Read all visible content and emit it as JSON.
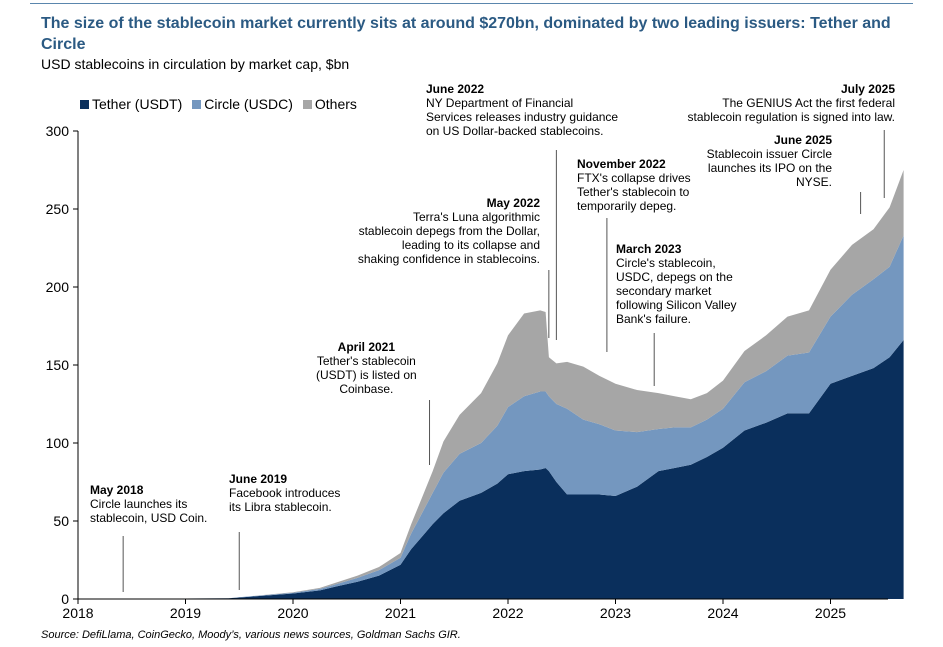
{
  "title": "The size of the stablecoin market currently sits at around $270bn, dominated by two leading issuers: Tether and Circle",
  "subtitle": "USD stablecoins in circulation by market cap, $bn",
  "source": "Source: DefiLlama, CoinGecko, Moody’s, various news sources, Goldman Sachs GIR.",
  "colors": {
    "tether": "#0a2f5c",
    "circle": "#7497bf",
    "others": "#a6a6a6",
    "title": "#2b5a83"
  },
  "annotations": [
    {
      "date": "May 2018",
      "lines": [
        "Circle launches its",
        "stablecoin, USD Coin."
      ]
    },
    {
      "date": "June 2019",
      "lines": [
        "Facebook introduces",
        "its Libra stablecoin."
      ]
    },
    {
      "date": "April 2021",
      "lines": [
        "Tether's stablecoin",
        "(USDT) is listed on",
        "Coinbase."
      ]
    },
    {
      "date": "May 2022",
      "lines": [
        "Terra's Luna algorithmic",
        "stablecoin depegs from the Dollar,",
        "leading to its collapse and",
        "shaking confidence in stablecoins."
      ]
    },
    {
      "date": "June 2022",
      "lines": [
        "NY Department of Financial",
        "Services releases industry guidance",
        "on US Dollar-backed stablecoins."
      ]
    },
    {
      "date": "November 2022",
      "lines": [
        "FTX's collapse drives",
        "Tether's stablecoin to",
        "temporarily depeg."
      ]
    },
    {
      "date": "March 2023",
      "lines": [
        "Circle's stablecoin,",
        "USDC, depegs on the",
        "secondary market",
        "following Silicon Valley",
        "Bank's failure."
      ]
    },
    {
      "date": "June 2025",
      "lines": [
        "Stablecoin issuer Circle",
        "launches its IPO on the",
        "NYSE."
      ]
    },
    {
      "date": "July 2025",
      "lines": [
        "The GENIUS Act the first federal",
        "stablecoin regulation is signed into law."
      ]
    }
  ],
  "chart_data": {
    "type": "area",
    "stacked": true,
    "xlim": [
      2018,
      2025.7
    ],
    "ylim": [
      0,
      300
    ],
    "x_ticks": [
      "2018",
      "2019",
      "2020",
      "2021",
      "2022",
      "2023",
      "2024",
      "2025"
    ],
    "y_ticks": [
      "0",
      "50",
      "100",
      "150",
      "200",
      "250",
      "300"
    ],
    "grid": false,
    "legend_position": "top-left",
    "x": [
      2018.0,
      2018.5,
      2019.0,
      2019.4,
      2019.6,
      2019.8,
      2020.0,
      2020.25,
      2020.4,
      2020.6,
      2020.8,
      2021.0,
      2021.1,
      2021.2,
      2021.3,
      2021.4,
      2021.55,
      2021.75,
      2021.9,
      2022.0,
      2022.15,
      2022.3,
      2022.35,
      2022.38,
      2022.45,
      2022.55,
      2022.7,
      2022.85,
      2023.0,
      2023.2,
      2023.4,
      2023.55,
      2023.7,
      2023.85,
      2024.0,
      2024.2,
      2024.4,
      2024.6,
      2024.8,
      2025.0,
      2025.2,
      2025.4,
      2025.55,
      2025.68
    ],
    "series": [
      {
        "name": "Tether (USDT)",
        "values": [
          0.1,
          0.2,
          0.3,
          0.5,
          1.5,
          2.5,
          3.5,
          5.5,
          8,
          11,
          15,
          22,
          32,
          40,
          48,
          55,
          63,
          68,
          74,
          80,
          82,
          83,
          84,
          82,
          75,
          67,
          67,
          67,
          66,
          72,
          82,
          84,
          86,
          91,
          97,
          108,
          113,
          119,
          119,
          138,
          143,
          148,
          155,
          166
        ]
      },
      {
        "name": "Circle (USDC)",
        "values": [
          0,
          0,
          0,
          0,
          0.2,
          0.4,
          0.5,
          1,
          1.5,
          2.5,
          3.5,
          4.5,
          10,
          15,
          20,
          26,
          30,
          32,
          37,
          43,
          48,
          50,
          49,
          48,
          50,
          55,
          48,
          45,
          42,
          35,
          27,
          26,
          24,
          24,
          25,
          31,
          33,
          37,
          39,
          43,
          52,
          57,
          58,
          67
        ]
      },
      {
        "name": "Others",
        "values": [
          0,
          0,
          0,
          0,
          0.1,
          0.2,
          0.3,
          0.6,
          1,
          1.5,
          2,
          3,
          6,
          10,
          14,
          20,
          25,
          32,
          40,
          46,
          53,
          52,
          51,
          25,
          26,
          30,
          34,
          31,
          30,
          27,
          23,
          20,
          18,
          17,
          18,
          20,
          23,
          25,
          27,
          30,
          32,
          32,
          38,
          42
        ]
      }
    ]
  }
}
